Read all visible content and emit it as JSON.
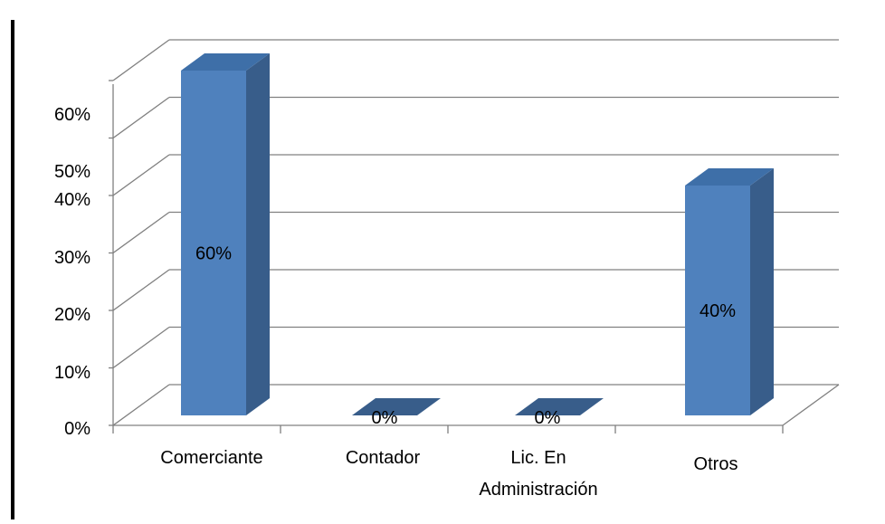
{
  "chart_data": {
    "type": "bar",
    "style": "3d-column",
    "categories": [
      "Comerciante",
      "Contador",
      "Lic. En Administración",
      "Otros"
    ],
    "category_label_lines": [
      [
        "Comerciante"
      ],
      [
        "Contador"
      ],
      [
        "Lic. En",
        "Administración"
      ],
      [
        "Otros"
      ]
    ],
    "values": [
      60,
      0,
      0,
      40
    ],
    "data_labels": [
      "60%",
      "0%",
      "0%",
      "40%"
    ],
    "y_tick_labels": [
      "0%",
      "10%",
      "20%",
      "30%",
      "40%",
      "50%",
      "60%"
    ],
    "ylim": [
      0,
      60
    ],
    "grid": true,
    "legend": "none",
    "colors": {
      "bar_front": "#4f81bd",
      "bar_side": "#385d8a",
      "bar_top": "#3e6fa8",
      "grid": "#808080",
      "border": "#000000",
      "text": "#000000"
    }
  }
}
